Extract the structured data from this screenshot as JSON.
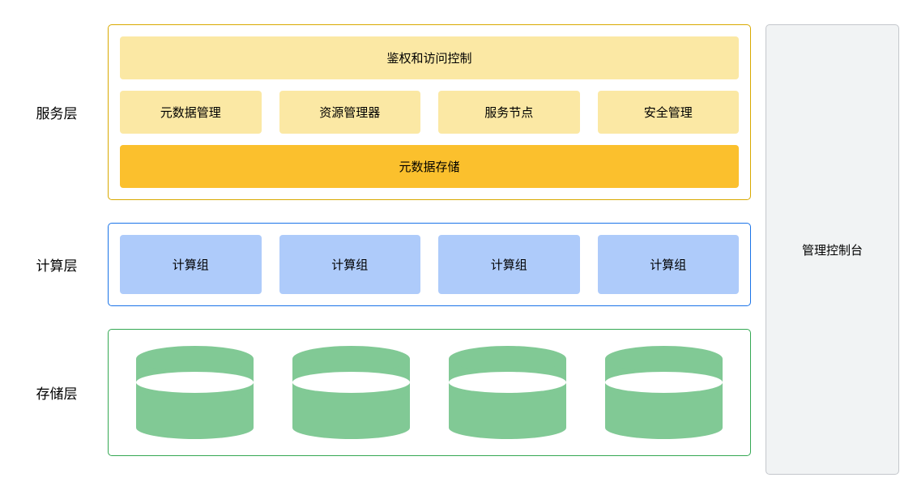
{
  "diagram": {
    "type": "architecture-layers",
    "background_color": "#ffffff",
    "font_family": "sans-serif",
    "label_fontsize": 17,
    "block_fontsize": 15,
    "layers": {
      "service": {
        "label": "服务层",
        "border_color": "#d9a900",
        "border_radius": 5,
        "rows": [
          {
            "type": "full",
            "items": [
              {
                "label": "鉴权和访问控制",
                "bg": "#fbe8a4"
              }
            ]
          },
          {
            "type": "grid4",
            "items": [
              {
                "label": "元数据管理",
                "bg": "#fbe8a4"
              },
              {
                "label": "资源管理器",
                "bg": "#fbe8a4"
              },
              {
                "label": "服务节点",
                "bg": "#fbe8a4"
              },
              {
                "label": "安全管理",
                "bg": "#fbe8a4"
              }
            ]
          },
          {
            "type": "full",
            "items": [
              {
                "label": "元数据存储",
                "bg": "#fbc02d"
              }
            ]
          }
        ]
      },
      "compute": {
        "label": "计算层",
        "border_color": "#1a73e8",
        "border_radius": 5,
        "rows": [
          {
            "type": "grid4",
            "items": [
              {
                "label": "计算组",
                "bg": "#aecbfa"
              },
              {
                "label": "计算组",
                "bg": "#aecbfa"
              },
              {
                "label": "计算组",
                "bg": "#aecbfa"
              },
              {
                "label": "计算组",
                "bg": "#aecbfa"
              }
            ]
          }
        ]
      },
      "storage": {
        "label": "存储层",
        "border_color": "#34a853",
        "border_radius": 5,
        "cylinder_color": "#81c995",
        "cylinder_count": 4,
        "cylinder_width": 145,
        "cylinder_height": 115
      }
    },
    "side_panel": {
      "label": "管理控制台",
      "border_color": "#c4c7cc",
      "bg": "#f1f3f4",
      "border_radius": 5
    }
  }
}
